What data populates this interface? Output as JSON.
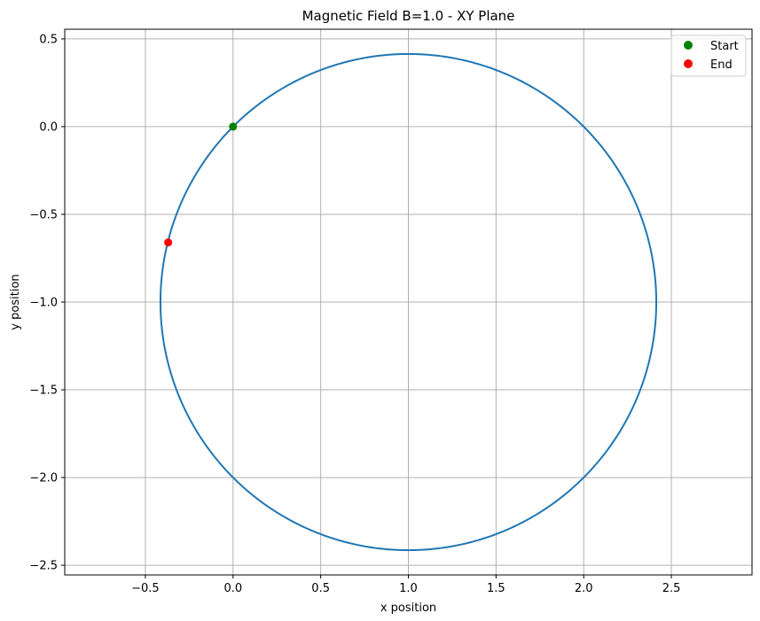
{
  "chart_data": {
    "type": "line",
    "title": "Magnetic Field B=1.0 - XY Plane",
    "xlabel": "x position",
    "ylabel": "y position",
    "xlim": [
      -0.96,
      2.96
    ],
    "ylim": [
      -2.555,
      0.555
    ],
    "xticks": [
      -0.5,
      0.0,
      0.5,
      1.0,
      1.5,
      2.0,
      2.5
    ],
    "xtick_labels": [
      "−0.5",
      "0.0",
      "0.5",
      "1.0",
      "1.5",
      "2.0",
      "2.5"
    ],
    "yticks": [
      0.5,
      0.0,
      -0.5,
      -1.0,
      -1.5,
      -2.0,
      -2.5
    ],
    "ytick_labels": [
      "0.5",
      "0.0",
      "−0.5",
      "−1.0",
      "−1.5",
      "−2.0",
      "−2.5"
    ],
    "grid": true,
    "legend_position": "top-right",
    "series": [
      {
        "kind": "trajectory",
        "color": "#1f77b4",
        "shape": "circle",
        "center": [
          1.0,
          -1.0
        ],
        "radius": 1.414,
        "line_width": 2
      },
      {
        "kind": "marker",
        "name": "Start",
        "color": "#008000",
        "x": 0.0,
        "y": 0.0
      },
      {
        "kind": "marker",
        "name": "End",
        "color": "#ff0000",
        "x": -0.37,
        "y": -0.66
      }
    ]
  }
}
